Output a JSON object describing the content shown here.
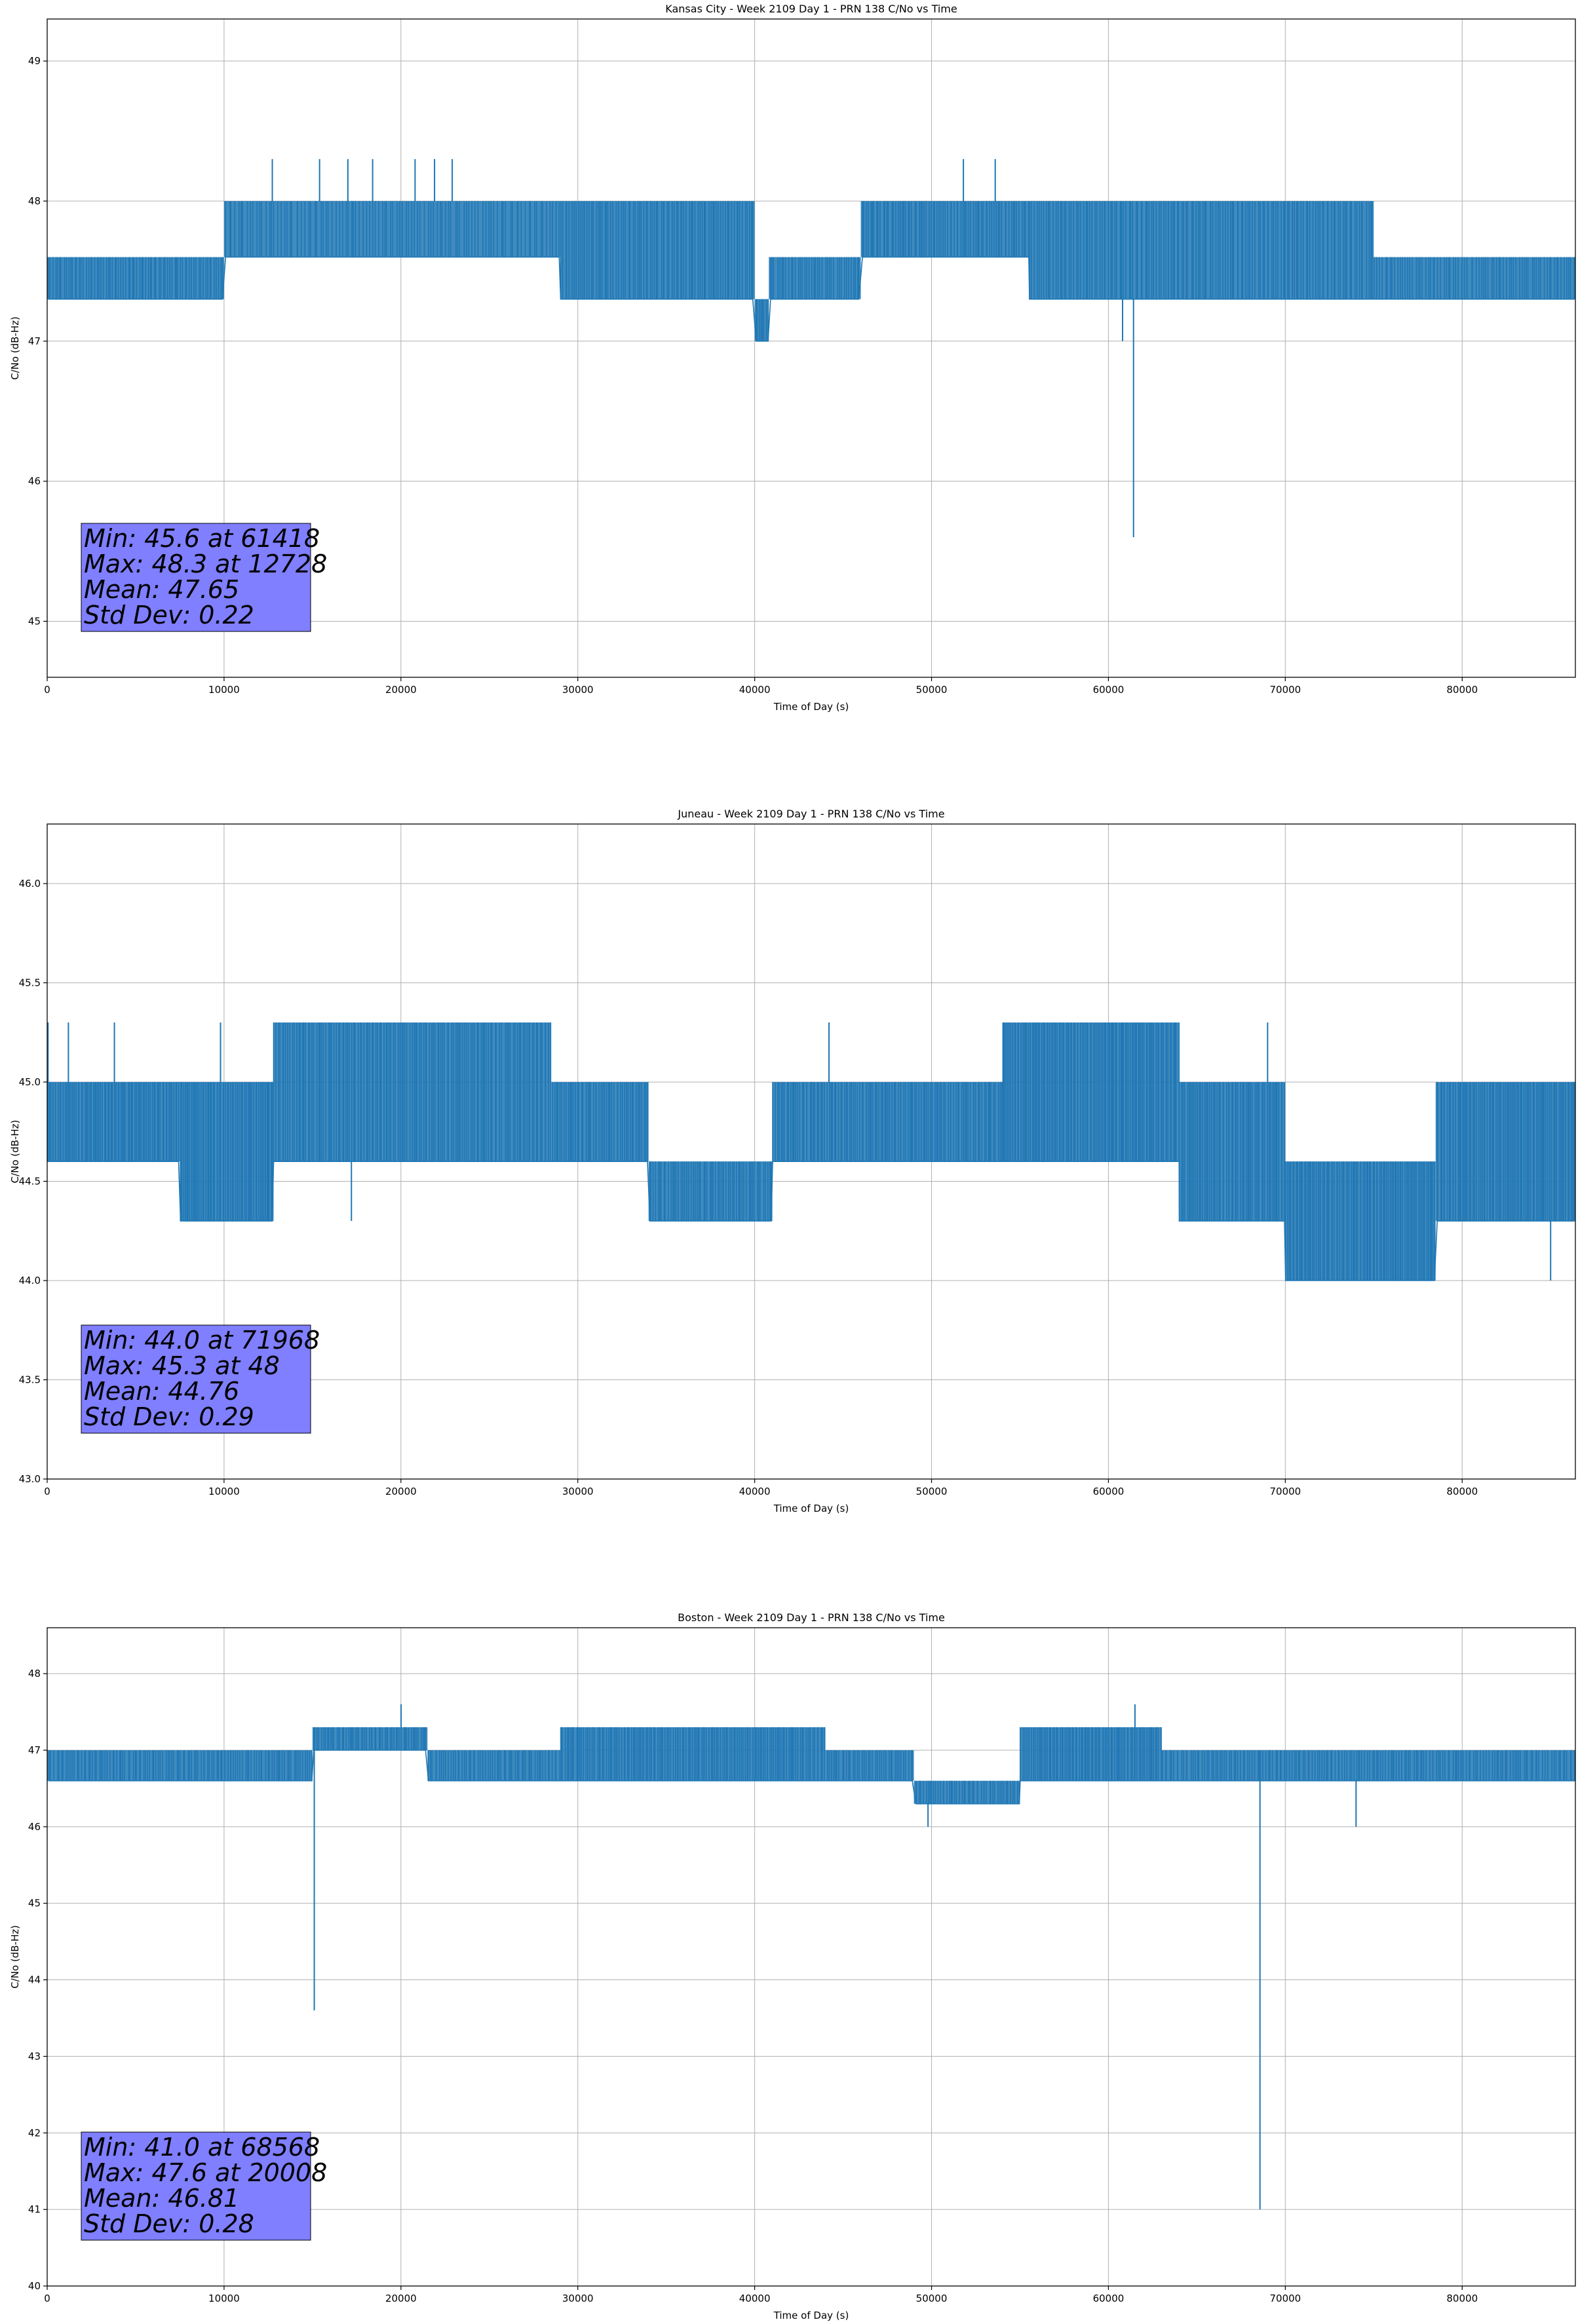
{
  "chart_data": [
    {
      "type": "line",
      "title": "Kansas City - Week 2109 Day 1 - PRN 138 C/No vs Time",
      "xlabel": "Time of Day (s)",
      "ylabel": "C/No (dB-Hz)",
      "xlim": [
        0,
        86400
      ],
      "ylim": [
        44.6,
        49.3
      ],
      "xticks": [
        0,
        10000,
        20000,
        30000,
        40000,
        50000,
        60000,
        70000,
        80000
      ],
      "yticks": [
        45,
        46,
        47,
        48,
        49
      ],
      "ytick_decimals": 0,
      "grid": true,
      "series_color": "#1f77b4",
      "series": [
        {
          "segments": [
            {
              "x": [
                0,
                10000
              ],
              "values": [
                47.3,
                47.6
              ],
              "density": 80
            },
            {
              "x": [
                10000,
                29000
              ],
              "values": [
                47.6,
                48.0
              ],
              "density": 110
            },
            {
              "x": [
                29000,
                40000
              ],
              "values": [
                47.3,
                48.0
              ],
              "density": 90
            },
            {
              "x": [
                40000,
                40800
              ],
              "values": [
                47.0,
                47.3
              ],
              "density": 8
            },
            {
              "x": [
                40800,
                46000
              ],
              "values": [
                47.3,
                47.6
              ],
              "density": 40
            },
            {
              "x": [
                46000,
                55500
              ],
              "values": [
                47.6,
                48.0
              ],
              "density": 80
            },
            {
              "x": [
                55500,
                75000
              ],
              "values": [
                47.3,
                48.0
              ],
              "density": 150
            },
            {
              "x": [
                75000,
                86400
              ],
              "values": [
                47.3,
                47.6
              ],
              "density": 80
            }
          ],
          "spikes": [
            {
              "x": 12728,
              "y": 48.3
            },
            {
              "x": 15400,
              "y": 48.3
            },
            {
              "x": 17000,
              "y": 48.3
            },
            {
              "x": 18400,
              "y": 48.3
            },
            {
              "x": 20800,
              "y": 48.3
            },
            {
              "x": 21900,
              "y": 48.3
            },
            {
              "x": 22900,
              "y": 48.3
            },
            {
              "x": 51800,
              "y": 48.3
            },
            {
              "x": 53600,
              "y": 48.3
            },
            {
              "x": 60800,
              "y": 47.0
            },
            {
              "x": 61418,
              "y": 45.6
            }
          ]
        }
      ],
      "stats_box": {
        "lines": [
          "Min: 45.6 at 61418",
          "Max: 48.3 at 12728",
          "Mean: 47.65",
          "Std Dev: 0.22"
        ],
        "color": "#7f7fff"
      }
    },
    {
      "type": "line",
      "title": "Juneau - Week 2109 Day 1 - PRN 138 C/No vs Time",
      "xlabel": "Time of Day (s)",
      "ylabel": "C/No (dB-Hz)",
      "xlim": [
        0,
        86400
      ],
      "ylim": [
        43.0,
        46.3
      ],
      "xticks": [
        0,
        10000,
        20000,
        30000,
        40000,
        50000,
        60000,
        70000,
        80000
      ],
      "yticks": [
        43.0,
        43.5,
        44.0,
        44.5,
        45.0,
        45.5,
        46.0
      ],
      "ytick_decimals": 1,
      "grid": true,
      "series_color": "#1f77b4",
      "series": [
        {
          "segments": [
            {
              "x": [
                0,
                7500
              ],
              "values": [
                44.6,
                45.0
              ],
              "density": 80
            },
            {
              "x": [
                7500,
                12800
              ],
              "values": [
                44.3,
                45.0
              ],
              "density": 60
            },
            {
              "x": [
                12800,
                28500
              ],
              "values": [
                44.6,
                45.3
              ],
              "density": 140
            },
            {
              "x": [
                28500,
                34000
              ],
              "values": [
                44.6,
                45.0
              ],
              "density": 50
            },
            {
              "x": [
                34000,
                41000
              ],
              "values": [
                44.3,
                44.6
              ],
              "density": 60
            },
            {
              "x": [
                41000,
                54000
              ],
              "values": [
                44.6,
                45.0
              ],
              "density": 120
            },
            {
              "x": [
                54000,
                64000
              ],
              "values": [
                44.6,
                45.3
              ],
              "density": 110
            },
            {
              "x": [
                64000,
                70000
              ],
              "values": [
                44.3,
                45.0
              ],
              "density": 60
            },
            {
              "x": [
                70000,
                78500
              ],
              "values": [
                44.0,
                44.6
              ],
              "density": 90
            },
            {
              "x": [
                78500,
                86400
              ],
              "values": [
                44.3,
                45.0
              ],
              "density": 80
            }
          ],
          "spikes": [
            {
              "x": 48,
              "y": 45.3
            },
            {
              "x": 1200,
              "y": 45.3
            },
            {
              "x": 3800,
              "y": 45.3
            },
            {
              "x": 9800,
              "y": 45.3
            },
            {
              "x": 17200,
              "y": 44.3
            },
            {
              "x": 44200,
              "y": 45.3
            },
            {
              "x": 69000,
              "y": 45.3
            },
            {
              "x": 71968,
              "y": 44.0
            },
            {
              "x": 85000,
              "y": 44.0
            }
          ]
        }
      ],
      "stats_box": {
        "lines": [
          "Min: 44.0 at 71968",
          "Max: 45.3 at 48",
          "Mean: 44.76",
          "Std Dev: 0.29"
        ],
        "color": "#7f7fff"
      }
    },
    {
      "type": "line",
      "title": "Boston - Week 2109 Day 1 - PRN 138 C/No vs Time",
      "xlabel": "Time of Day (s)",
      "ylabel": "C/No (dB-Hz)",
      "xlim": [
        0,
        86400
      ],
      "ylim": [
        40,
        48.6
      ],
      "xticks": [
        0,
        10000,
        20000,
        30000,
        40000,
        50000,
        60000,
        70000,
        80000
      ],
      "yticks": [
        40,
        41,
        42,
        43,
        44,
        45,
        46,
        47,
        48
      ],
      "ytick_decimals": 0,
      "grid": true,
      "series_color": "#1f77b4",
      "series": [
        {
          "segments": [
            {
              "x": [
                0,
                15000
              ],
              "values": [
                46.6,
                47.0
              ],
              "density": 120
            },
            {
              "x": [
                15000,
                21500
              ],
              "values": [
                47.0,
                47.3
              ],
              "density": 60
            },
            {
              "x": [
                21500,
                29000
              ],
              "values": [
                46.6,
                47.0
              ],
              "density": 60
            },
            {
              "x": [
                29000,
                44000
              ],
              "values": [
                46.6,
                47.3
              ],
              "density": 140
            },
            {
              "x": [
                44000,
                49000
              ],
              "values": [
                46.6,
                47.0
              ],
              "density": 40
            },
            {
              "x": [
                49000,
                55000
              ],
              "values": [
                46.3,
                46.6
              ],
              "density": 50
            },
            {
              "x": [
                55000,
                63000
              ],
              "values": [
                46.6,
                47.3
              ],
              "density": 80
            },
            {
              "x": [
                63000,
                86400
              ],
              "values": [
                46.6,
                47.0
              ],
              "density": 180
            }
          ],
          "spikes": [
            {
              "x": 15100,
              "y": 43.6
            },
            {
              "x": 20008,
              "y": 47.6
            },
            {
              "x": 49800,
              "y": 46.0
            },
            {
              "x": 61500,
              "y": 47.6
            },
            {
              "x": 68568,
              "y": 41.0
            },
            {
              "x": 74000,
              "y": 46.0
            }
          ]
        }
      ],
      "stats_box": {
        "lines": [
          "Min: 41.0 at 68568",
          "Max: 47.6 at 20008",
          "Mean: 46.81",
          "Std Dev: 0.28"
        ],
        "color": "#7f7fff"
      }
    }
  ]
}
